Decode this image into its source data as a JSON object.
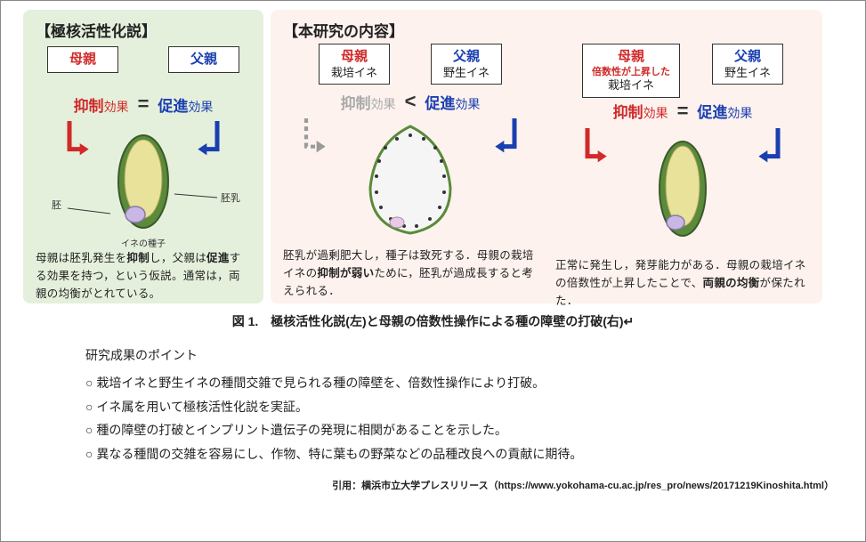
{
  "left_panel": {
    "title": "【極核活性化説】",
    "mother": {
      "role": "母親"
    },
    "father": {
      "role": "父親"
    },
    "suppress_big": "抑制",
    "suppress_small": "効果",
    "op": "=",
    "promote_big": "促進",
    "promote_small": "効果",
    "embryo_label": "胚",
    "endosperm_label": "胚乳",
    "seed_caption": "イネの種子",
    "desc_html": "母親は胚乳発生を<span class='b'>抑制</span>し，父親は<span class='b'>促進</span>する効果を持つ，という仮説。通常は，両親の均衡がとれている。",
    "arrow_color_mother": "#d02a2a",
    "arrow_color_father": "#1a3fb0",
    "seed_outer": "#5a8a3a",
    "seed_inner": "#e8e29a",
    "embryo_fill": "#c9b7e6"
  },
  "right_panel": {
    "title": "【本研究の内容】",
    "col1": {
      "mother": {
        "role": "母親",
        "sub": "栽培イネ"
      },
      "father": {
        "role": "父親",
        "sub": "野生イネ"
      },
      "suppress_big": "抑制",
      "suppress_small": "効果",
      "op": "<",
      "promote_big": "促進",
      "promote_small": "効果",
      "desc_html": "胚乳が過剰肥大し，種子は致死する．母親の栽培イネの<span class='b'>抑制が弱い</span>ために，胚乳が過成長すると考えられる．",
      "arrow_weak_color": "#9a9a9a",
      "arrow_father_color": "#1a3fb0",
      "seed_outer": "#5a8a3a",
      "seed_inner": "#f5f5f5",
      "embryo_fill": "#e8c9e6",
      "dot_color": "#333333"
    },
    "col2": {
      "mother": {
        "role": "母親",
        "ploidy": "倍数性が上昇した",
        "sub": "栽培イネ"
      },
      "father": {
        "role": "父親",
        "sub": "野生イネ"
      },
      "suppress_big": "抑制",
      "suppress_small": "効果",
      "op": "=",
      "promote_big": "促進",
      "promote_small": "効果",
      "desc_html": "正常に発生し，発芽能力がある．母親の栽培イネの倍数性が上昇したことで、<span class='b'>両親の均衡</span>が保たれた．",
      "arrow_mother_color": "#d02a2a",
      "arrow_father_color": "#1a3fb0",
      "seed_outer": "#5a8a3a",
      "seed_inner": "#e8e29a",
      "embryo_fill": "#c9b7e6"
    }
  },
  "figure_caption": "図 1.　極核活性化説(左)と母親の倍数性操作による種の障壁の打破(右)",
  "points_title": "研究成果のポイント",
  "points": [
    "栽培イネと野生イネの種間交雑で見られる種の障壁を、倍数性操作により打破。",
    "イネ属を用いて極核活性化説を実証。",
    "種の障壁の打破とインプリント遺伝子の発現に相関があることを示した。",
    "異なる種間の交雑を容易にし、作物、特に葉もの野菜などの品種改良への貢献に期待。"
  ],
  "citation": "引用：横浜市立大学プレスリリース（https://www.yokohama-cu.ac.jp/res_pro/news/20171219Kinoshita.html）"
}
